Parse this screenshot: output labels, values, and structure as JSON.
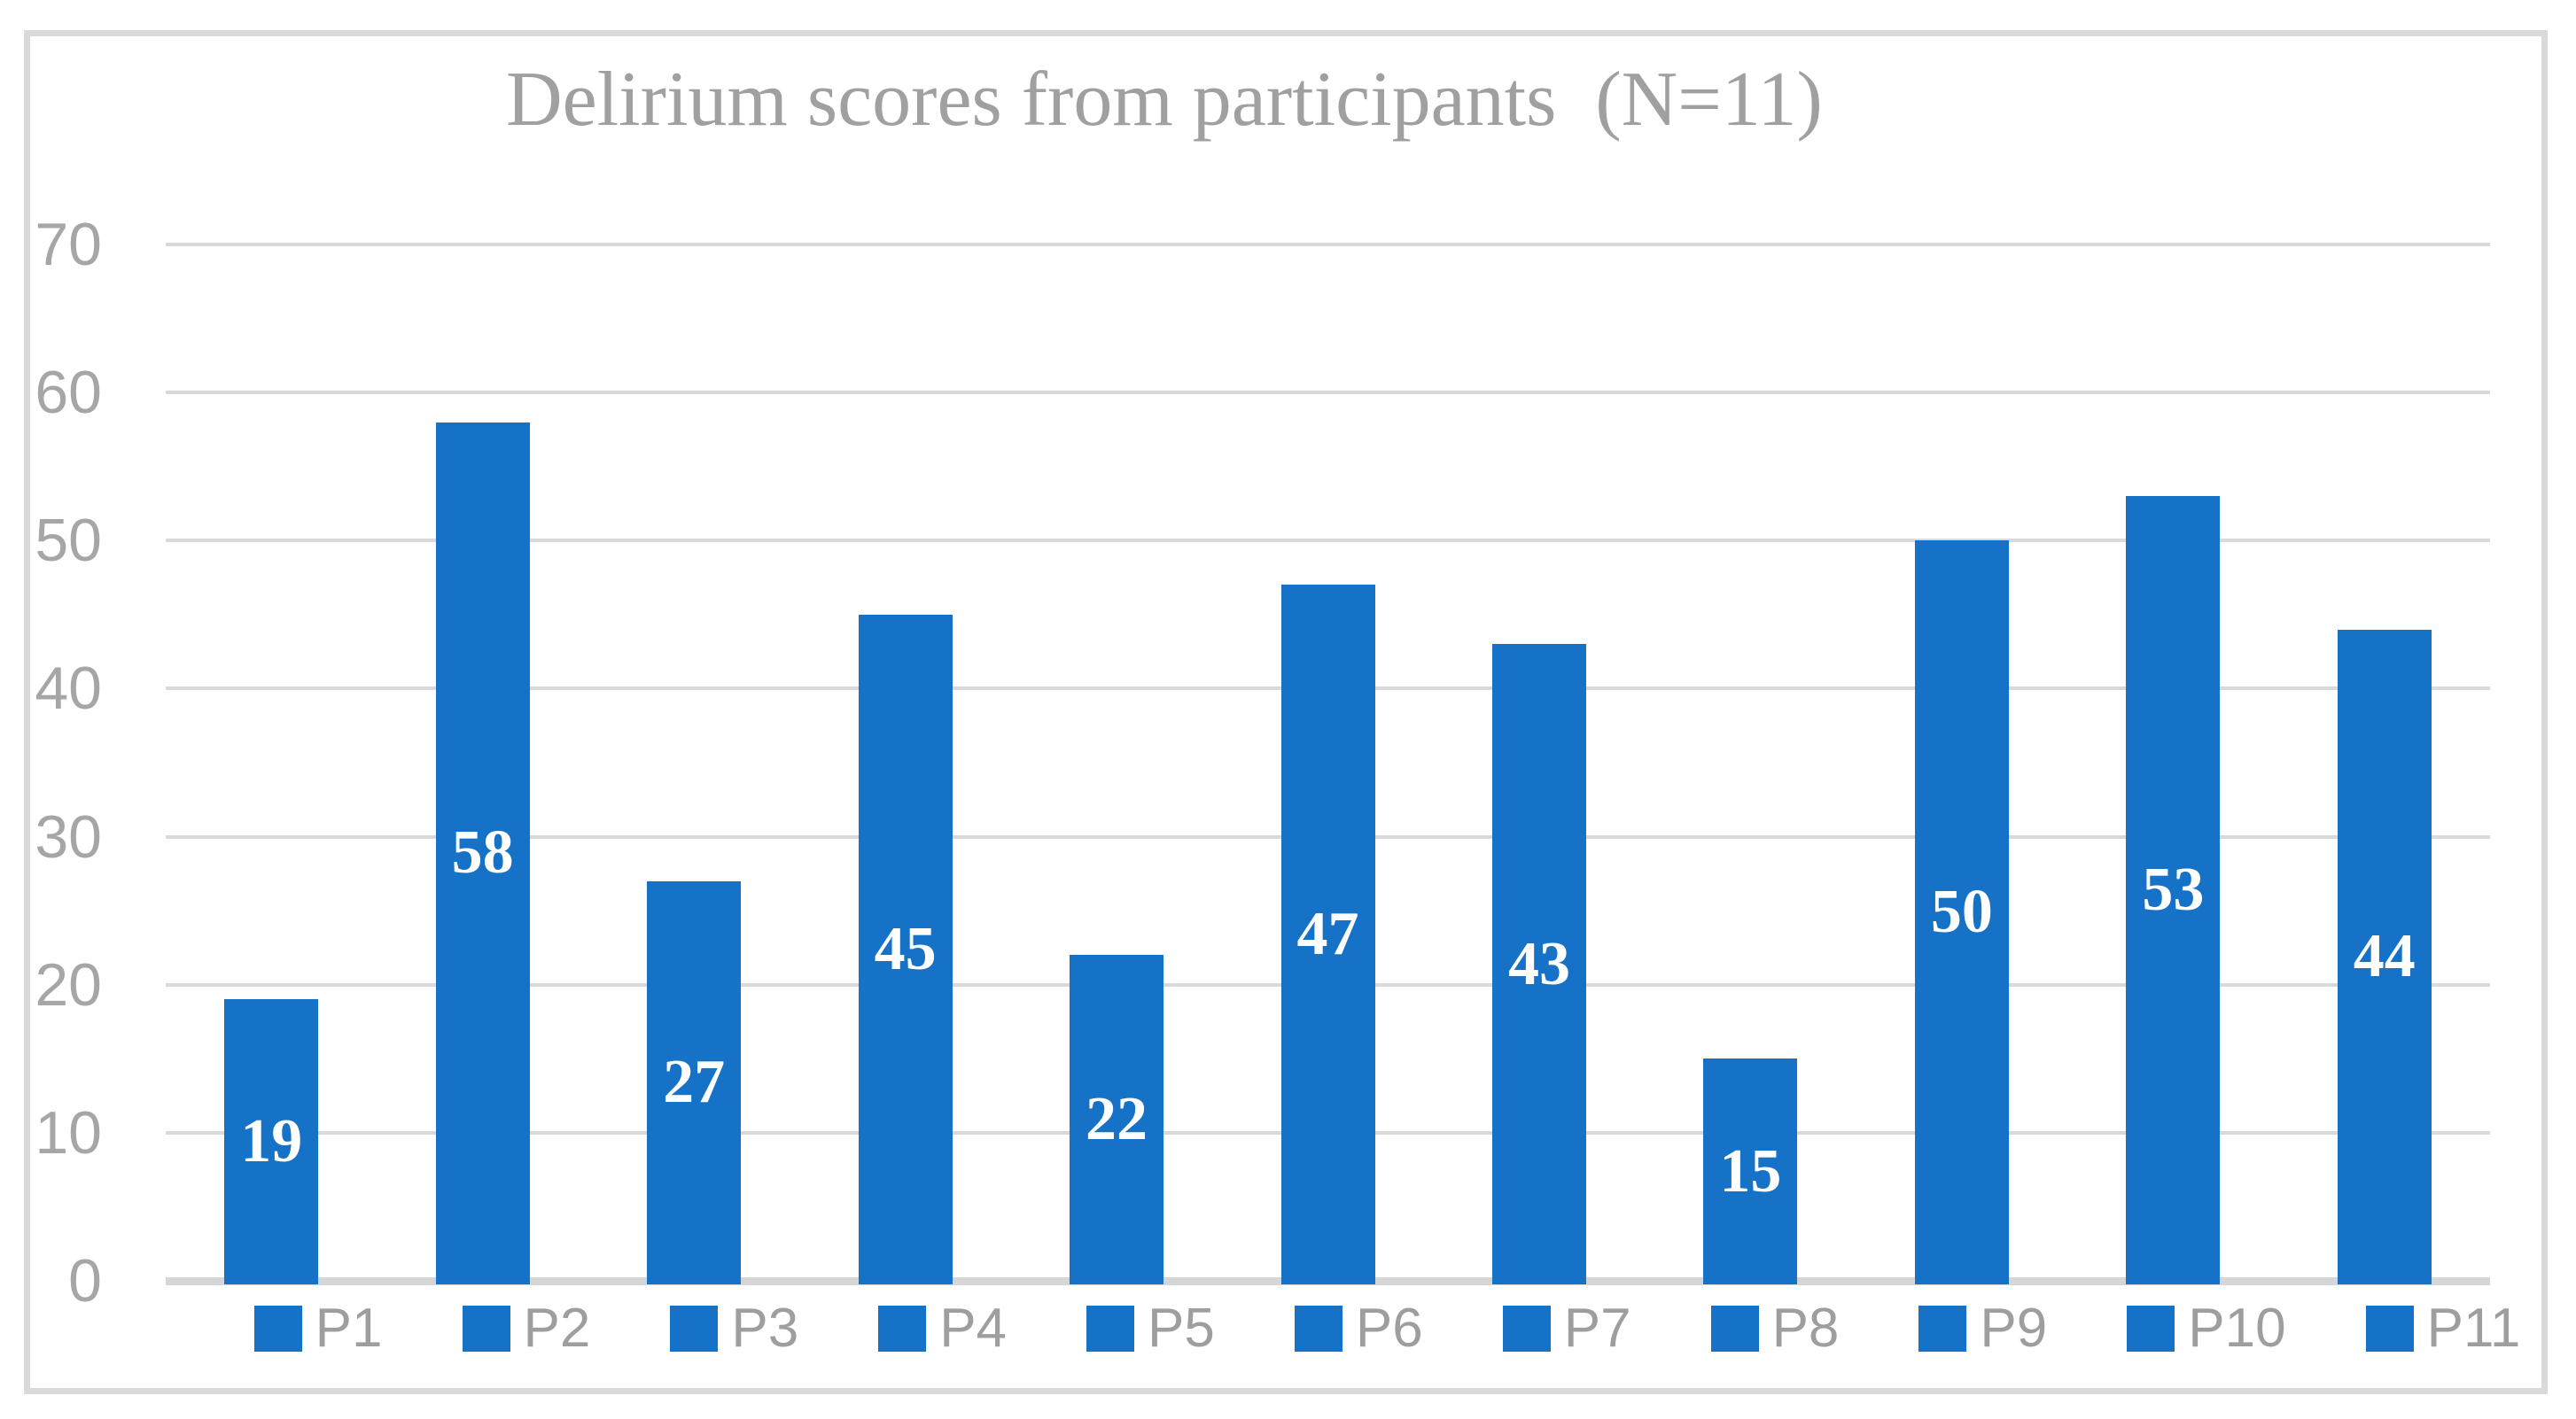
{
  "chart_data": {
    "type": "bar",
    "title": "Delirium scores from participants  (N=11)",
    "categories": [
      "P1",
      "P2",
      "P3",
      "P4",
      "P5",
      "P6",
      "P7",
      "P8",
      "P9",
      "P10",
      "P11"
    ],
    "values": [
      19,
      58,
      27,
      45,
      22,
      47,
      43,
      15,
      50,
      53,
      44
    ],
    "xlabel": "",
    "ylabel": "",
    "ylim": [
      0,
      70
    ],
    "yticks": [
      0,
      10,
      20,
      30,
      40,
      50,
      60,
      70
    ],
    "grid": "horizontal",
    "legend_position": "bottom",
    "data_labels_position": "inside-center"
  },
  "colors": {
    "bar": "#1672c7",
    "gridline": "#d9d9d9",
    "axis_line": "#d6d6d6",
    "frame_border": "#d9d9d9",
    "title_text": "#a0a0a0",
    "tick_text": "#a6a6a6",
    "legend_text": "#9e9e9e",
    "data_label_text": "#ffffff",
    "background": "#ffffff"
  }
}
